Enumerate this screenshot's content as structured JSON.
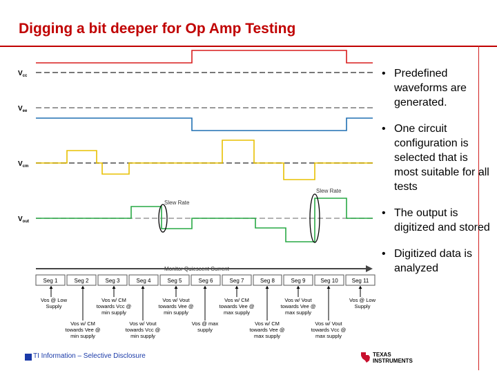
{
  "slide": {
    "title": "Digging a bit deeper for Op Amp Testing",
    "footer": "TI Information – Selective Disclosure",
    "logo_text": {
      "line1": "Texas",
      "line2": "Instruments"
    }
  },
  "bullets": [
    "Predefined waveforms are generated.",
    "One circuit configuration is selected that is most suitable for all tests",
    "The output is digitized and stored",
    "Digitized data is analyzed"
  ],
  "diagram": {
    "signals": [
      {
        "label": "Vcc",
        "color": "#d81b1b"
      },
      {
        "label": "Vee",
        "color": "#1f6fb2"
      },
      {
        "label": "Vcm",
        "color": "#e8c000"
      },
      {
        "label": "Vout",
        "color": "#27a844"
      }
    ],
    "annotations": {
      "slew_rate_1": "Slew Rate",
      "slew_rate_2": "Slew Rate",
      "monitor": "Monitor Quiescent Current"
    },
    "segments": [
      "Seg 1",
      "Seg 2",
      "Seg 3",
      "Seg 4",
      "Seg 5",
      "Seg 6",
      "Seg 7",
      "Seg 8",
      "Seg 9",
      "Seg 10",
      "Seg 11"
    ],
    "test_labels_top": [
      {
        "lines": [
          "Vos @ Low",
          "Supply"
        ]
      },
      {
        "lines": [
          "Vos w/ CM",
          "towards Vcc @",
          "min supply"
        ]
      },
      {
        "lines": [
          "Vos w/ Vout",
          "towards Vee @",
          "min supply"
        ]
      },
      {
        "lines": [
          "Vos w/ CM",
          "towards Vee @",
          "max supply"
        ]
      },
      {
        "lines": [
          "Vos w/ Vout",
          "towards Vee @",
          "max supply"
        ]
      },
      {
        "lines": [
          "Vos @ Low",
          "Supply"
        ]
      }
    ],
    "test_labels_bottom": [
      {
        "lines": [
          "Vos w/ CM",
          "towards Vee @",
          "min supply"
        ]
      },
      {
        "lines": [
          "Vos w/ Vout",
          "towards Vcc @",
          "min supply"
        ]
      },
      {
        "lines": [
          "Vos @ max",
          "supply"
        ]
      },
      {
        "lines": [
          "Vos w/ CM",
          "towards Vee @",
          "max supply"
        ]
      },
      {
        "lines": [
          "Vos w/ Vout",
          "towards Vcc @",
          "max supply"
        ]
      }
    ]
  }
}
